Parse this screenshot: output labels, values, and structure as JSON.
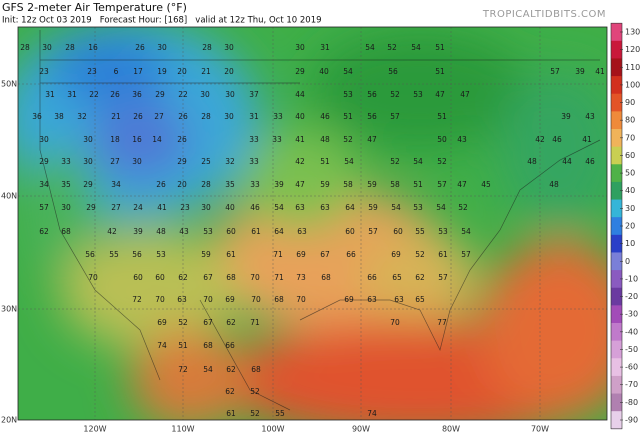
{
  "header": {
    "title": "GFS 2-meter Air Temperature (°F)",
    "subtitle": "Init: 12z Oct 03 2019   Forecast Hour: [168]   valid at 12z Thu, Oct 10 2019",
    "brand": "TROPICALTIDBITS.COM"
  },
  "map": {
    "lat_labels": [
      "50N",
      "40N",
      "30N",
      "20N"
    ],
    "lon_labels": [
      "120W",
      "110W",
      "100W",
      "90W",
      "80W",
      "70W"
    ],
    "temperature_rows": [
      [
        28,
        30,
        28,
        16,
        26,
        30,
        28,
        30,
        30,
        31,
        54,
        52,
        54,
        51
      ],
      [
        23,
        23,
        6,
        17,
        19,
        20,
        21,
        20,
        29,
        40,
        54,
        56,
        51,
        57,
        39,
        41
      ],
      [
        31,
        31,
        22,
        26,
        36,
        29,
        22,
        30,
        30,
        37,
        44,
        53,
        56,
        52,
        53,
        47,
        47
      ],
      [
        36,
        38,
        32,
        21,
        26,
        27,
        26,
        28,
        30,
        31,
        33,
        40,
        46,
        51,
        56,
        57,
        51,
        39,
        43
      ],
      [
        30,
        30,
        18,
        16,
        14,
        26,
        33,
        33,
        41,
        48,
        52,
        47,
        50,
        43,
        42,
        46,
        41
      ],
      [
        29,
        33,
        30,
        27,
        30,
        29,
        25,
        32,
        33,
        42,
        51,
        54,
        52,
        54,
        52,
        48,
        44,
        46
      ],
      [
        34,
        35,
        29,
        34,
        26,
        20,
        28,
        35,
        33,
        39,
        47,
        59,
        58,
        59,
        58,
        51,
        57,
        47,
        45,
        48
      ],
      [
        57,
        30,
        29,
        27,
        24,
        41,
        23,
        30,
        40,
        46,
        54,
        63,
        63,
        64,
        59,
        54,
        53,
        54,
        52
      ],
      [
        62,
        68,
        42,
        39,
        48,
        43,
        53,
        60,
        61,
        64,
        63,
        60,
        57,
        60,
        55,
        53,
        54
      ],
      [
        56,
        55,
        56,
        53,
        59,
        61,
        71,
        69,
        67,
        66,
        69,
        52,
        61,
        57
      ],
      [
        70,
        60,
        60,
        62,
        67,
        68,
        70,
        71,
        73,
        68,
        66,
        65,
        62,
        57
      ],
      [
        72,
        70,
        63,
        70,
        69,
        70,
        68,
        70,
        69,
        63,
        63,
        65
      ],
      [
        69,
        52,
        67,
        62,
        71,
        70,
        77
      ],
      [
        74,
        51,
        68,
        66
      ],
      [
        72,
        54,
        62,
        68
      ],
      [
        62,
        52
      ],
      [
        61,
        52,
        55,
        74
      ]
    ]
  },
  "colorbar": {
    "ticks": [
      130,
      120,
      110,
      100,
      90,
      80,
      70,
      60,
      50,
      40,
      30,
      20,
      10,
      0,
      -10,
      -20,
      -30,
      -40,
      -50,
      -60,
      -70,
      -80,
      -90
    ]
  }
}
